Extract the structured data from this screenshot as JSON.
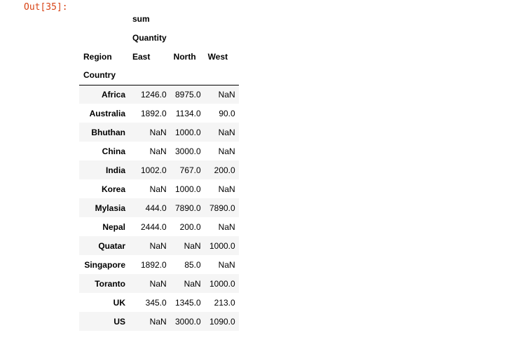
{
  "prompt": "Out[35]:",
  "header": {
    "level0": "sum",
    "level1": "Quantity",
    "columns_name": "Region",
    "columns": [
      "East",
      "North",
      "West"
    ],
    "index_name": "Country"
  },
  "rows": [
    {
      "country": "Africa",
      "east": "1246.0",
      "north": "8975.0",
      "west": "NaN"
    },
    {
      "country": "Australia",
      "east": "1892.0",
      "north": "1134.0",
      "west": "90.0"
    },
    {
      "country": "Bhuthan",
      "east": "NaN",
      "north": "1000.0",
      "west": "NaN"
    },
    {
      "country": "China",
      "east": "NaN",
      "north": "3000.0",
      "west": "NaN"
    },
    {
      "country": "India",
      "east": "1002.0",
      "north": "767.0",
      "west": "200.0"
    },
    {
      "country": "Korea",
      "east": "NaN",
      "north": "1000.0",
      "west": "NaN"
    },
    {
      "country": "Mylasia",
      "east": "444.0",
      "north": "7890.0",
      "west": "7890.0"
    },
    {
      "country": "Nepal",
      "east": "2444.0",
      "north": "200.0",
      "west": "NaN"
    },
    {
      "country": "Quatar",
      "east": "NaN",
      "north": "NaN",
      "west": "1000.0"
    },
    {
      "country": "Singapore",
      "east": "1892.0",
      "north": "85.0",
      "west": "NaN"
    },
    {
      "country": "Toranto",
      "east": "NaN",
      "north": "NaN",
      "west": "1000.0"
    },
    {
      "country": "UK",
      "east": "345.0",
      "north": "1345.0",
      "west": "213.0"
    },
    {
      "country": "US",
      "east": "NaN",
      "north": "3000.0",
      "west": "1090.0"
    }
  ]
}
